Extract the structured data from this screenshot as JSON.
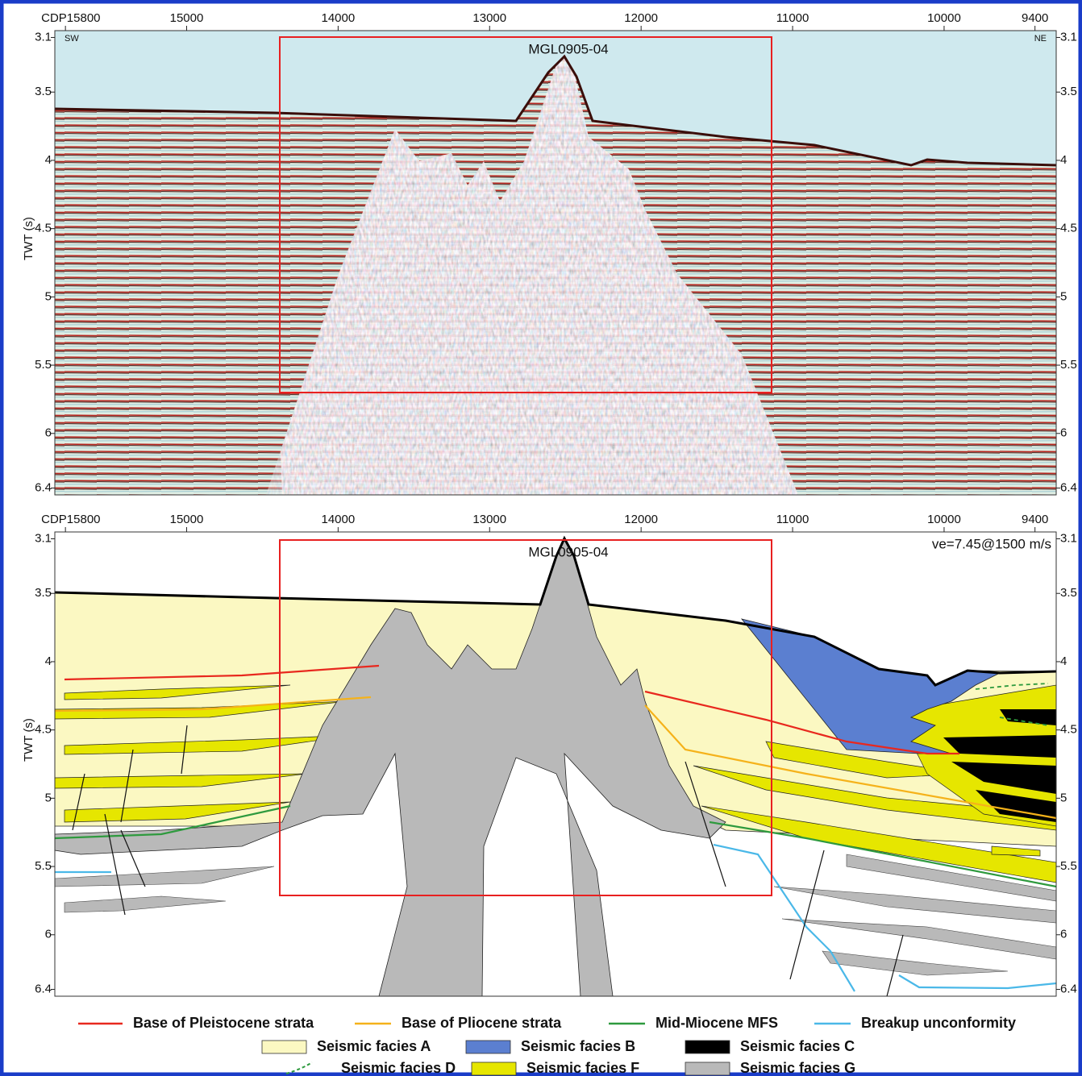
{
  "panels": [
    {
      "line_label": "MGL0905-04",
      "left_corner": "SW",
      "right_corner": "NE",
      "y_axis_title": "TWT (s)",
      "xlim": [
        15870,
        9260
      ],
      "xticks": [
        {
          "value": 15800,
          "label": "CDP15800"
        },
        15000,
        14000,
        13000,
        12000,
        11000,
        10000,
        9400
      ],
      "ylim": [
        3.05,
        6.45
      ],
      "yticks": [
        3.1,
        3.5,
        4,
        4.5,
        5,
        5.5,
        6,
        6.4
      ]
    },
    {
      "line_label": "MGL0905-04",
      "annotation": "ve=7.45@1500 m/s",
      "y_axis_title": "TWT (s)",
      "xlim": [
        15870,
        9260
      ],
      "xticks": [
        {
          "value": 15800,
          "label": "CDP15800"
        },
        15000,
        14000,
        13000,
        12000,
        11000,
        10000,
        9400
      ],
      "ylim": [
        3.05,
        6.45
      ],
      "yticks": [
        3.1,
        3.5,
        4,
        4.5,
        5,
        5.5,
        6,
        6.4
      ]
    }
  ],
  "legend": [
    {
      "label": "Base of Pleistocene strata",
      "kind": "line",
      "color": "#e8281e"
    },
    {
      "label": "Base of Pliocene strata",
      "kind": "line",
      "color": "#f5b21a"
    },
    {
      "label": "Mid-Miocene MFS",
      "kind": "line",
      "color": "#2e9a3e"
    },
    {
      "label": "Breakup unconformity",
      "kind": "line",
      "color": "#4ab8e8"
    },
    {
      "label": "Seismic facies A",
      "kind": "swatch",
      "color": "#fbf8c2"
    },
    {
      "label": "Seismic facies B",
      "kind": "swatch",
      "color": "#5b7fd0"
    },
    {
      "label": "Seismic facies C",
      "kind": "swatch",
      "color": "#000000"
    },
    {
      "label": "Seismic facies D",
      "kind": "dashed",
      "color": "#2e9a3e"
    },
    {
      "label": "Seismic facies F",
      "kind": "swatch",
      "color": "#e6e600"
    },
    {
      "label": "Seismic facies G",
      "kind": "swatch",
      "color": "#b9b9b9"
    }
  ]
}
